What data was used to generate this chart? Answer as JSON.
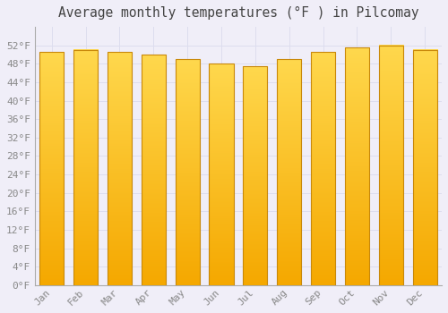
{
  "title": "Average monthly temperatures (°F ) in Pilcomay",
  "months": [
    "Jan",
    "Feb",
    "Mar",
    "Apr",
    "May",
    "Jun",
    "Jul",
    "Aug",
    "Sep",
    "Oct",
    "Nov",
    "Dec"
  ],
  "values": [
    50.5,
    51.0,
    50.5,
    50.0,
    49.0,
    48.0,
    47.5,
    49.0,
    50.5,
    51.5,
    52.0,
    51.0
  ],
  "bar_color_top": "#FFD84D",
  "bar_color_bottom": "#F5A800",
  "bar_edge_color": "#C8880A",
  "background_color": "#F0EEF8",
  "plot_bg_color": "#F0EEF8",
  "grid_color": "#DDDDEE",
  "text_color": "#888888",
  "title_color": "#444444",
  "ylim": [
    0,
    56
  ],
  "ytick_step": 4,
  "title_fontsize": 10.5,
  "tick_fontsize": 8,
  "bar_width": 0.72
}
